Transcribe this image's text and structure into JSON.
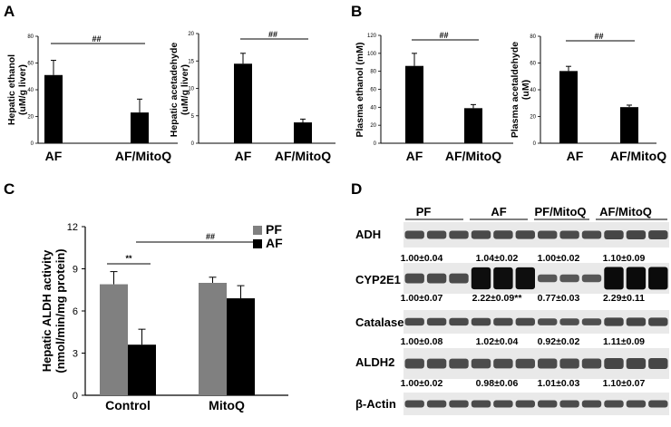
{
  "figure": {
    "panel_letters": [
      "A",
      "B",
      "C",
      "D"
    ],
    "western_blot": {
      "groups": [
        "PF",
        "AF",
        "PF/MitoQ",
        "AF/MitoQ"
      ],
      "rows": [
        {
          "label": "ADH",
          "values": [
            "1.00±0.04",
            "1.04±0.02",
            "1.00±0.02",
            "1.10±0.09"
          ]
        },
        {
          "label": "CYP2E1",
          "values": [
            "1.00±0.07",
            "2.22±0.09**",
            "0.77±0.03",
            "2.29±0.11"
          ]
        },
        {
          "label": "Catalase",
          "values": [
            "1.00±0.08",
            "1.02±0.04",
            "0.92±0.02",
            "1.11±0.09"
          ]
        },
        {
          "label": "ALDH2",
          "values": [
            "1.00±0.02",
            "0.98±0.06",
            "1.01±0.03",
            "1.10±0.07"
          ]
        },
        {
          "label": "β-Actin",
          "values": []
        }
      ],
      "band_intensity": {
        "ADH": [
          1.0,
          1.04,
          1.0,
          1.1
        ],
        "CYP2E1": [
          1.0,
          2.22,
          0.77,
          2.29
        ],
        "Catalase": [
          1.0,
          1.02,
          0.92,
          1.11
        ],
        "ALDH2": [
          1.0,
          0.98,
          1.01,
          1.1
        ],
        "β-Actin": [
          1.0,
          1.0,
          1.0,
          1.0
        ]
      }
    }
  },
  "chart_data": [
    {
      "panel": "A",
      "type": "bar",
      "categories": [
        "AF",
        "AF/MitoQ"
      ],
      "values": [
        51,
        23
      ],
      "errors": [
        11,
        10
      ],
      "ylabel": "Hepatic ethanol\n(uM/g liver)",
      "ylim": [
        0,
        80
      ],
      "yticks": [
        0,
        20,
        40,
        60,
        80
      ],
      "significance": "##"
    },
    {
      "panel": "A",
      "type": "bar",
      "categories": [
        "AF",
        "AF/MitoQ"
      ],
      "values": [
        14.5,
        3.8
      ],
      "errors": [
        1.9,
        0.6
      ],
      "ylabel": "Hepatic acetadehyde\n(uM/g liver)",
      "ylim": [
        0,
        20
      ],
      "yticks": [
        0,
        5,
        10,
        15,
        20
      ],
      "significance": "##"
    },
    {
      "panel": "B",
      "type": "bar",
      "categories": [
        "AF",
        "AF/MitoQ"
      ],
      "values": [
        86,
        39
      ],
      "errors": [
        14,
        4
      ],
      "ylabel": "Plasma ethanol (mM)",
      "ylim": [
        0,
        120
      ],
      "yticks": [
        0,
        20,
        40,
        60,
        80,
        100,
        120
      ],
      "significance": "##"
    },
    {
      "panel": "B",
      "type": "bar",
      "categories": [
        "AF",
        "AF/MitoQ"
      ],
      "values": [
        54,
        27
      ],
      "errors": [
        3.5,
        1.5
      ],
      "ylabel": "Plasma acetaldehyde\n(uM)",
      "ylim": [
        0,
        80
      ],
      "yticks": [
        0,
        20,
        40,
        60,
        80
      ],
      "significance": "##"
    },
    {
      "panel": "C",
      "type": "bar",
      "categories": [
        "Control",
        "MitoQ"
      ],
      "series": [
        {
          "name": "PF",
          "color": "#808080",
          "values": [
            7.9,
            8.0
          ],
          "errors": [
            0.9,
            0.4
          ]
        },
        {
          "name": "AF",
          "color": "#000000",
          "values": [
            3.6,
            6.9
          ],
          "errors": [
            1.1,
            0.9
          ]
        }
      ],
      "ylabel": "Hepatic ALDH activity\n(nmol/min/mg protein)",
      "ylim": [
        0,
        12
      ],
      "yticks": [
        0,
        3,
        6,
        9,
        12
      ],
      "significance": [
        {
          "label": "**",
          "between": "Control PF vs AF"
        },
        {
          "label": "##",
          "between": "Control AF vs MitoQ AF"
        }
      ],
      "legend": "top-right"
    }
  ]
}
